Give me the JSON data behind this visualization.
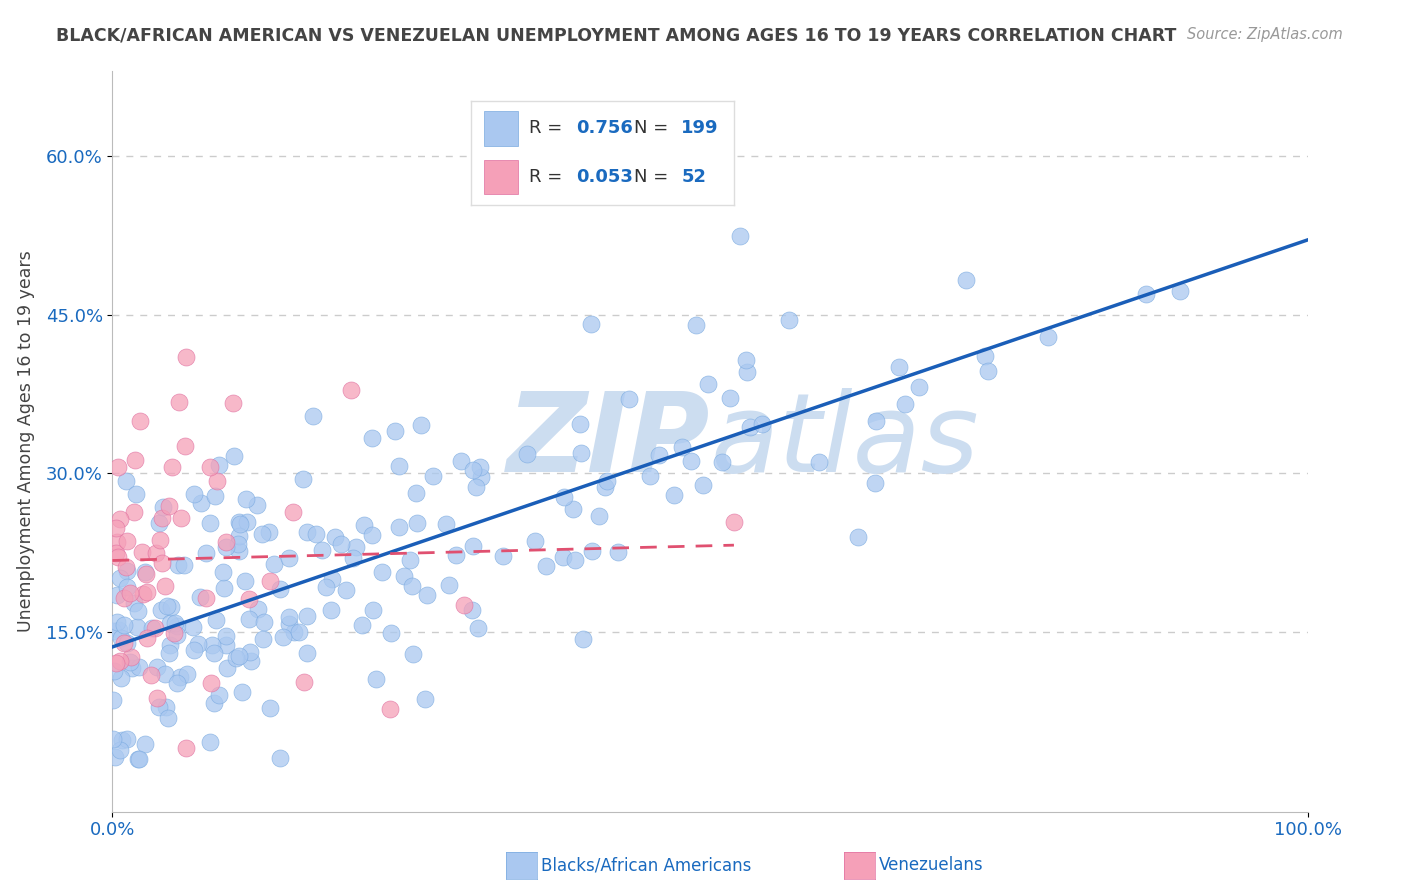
{
  "title": "BLACK/AFRICAN AMERICAN VS VENEZUELAN UNEMPLOYMENT AMONG AGES 16 TO 19 YEARS CORRELATION CHART",
  "source": "Source: ZipAtlas.com",
  "ylabel": "Unemployment Among Ages 16 to 19 years",
  "xlim": [
    0.0,
    1.0
  ],
  "ylim": [
    -0.02,
    0.68
  ],
  "x_tick_labels": [
    "0.0%",
    "100.0%"
  ],
  "y_ticks": [
    0.15,
    0.3,
    0.45,
    0.6
  ],
  "y_tick_labels": [
    "15.0%",
    "30.0%",
    "45.0%",
    "60.0%"
  ],
  "background_color": "#ffffff",
  "grid_color": "#cccccc",
  "blue_scatter_color": "#aac8f0",
  "blue_scatter_edge": "#7aaae0",
  "blue_line_color": "#1a5eb8",
  "pink_scatter_color": "#f5a0b8",
  "pink_scatter_edge": "#e070a0",
  "pink_line_color": "#e05070",
  "text_color": "#1a6abf",
  "title_color": "#444444",
  "watermark_color": "#ccddf0",
  "R_blue": 0.756,
  "N_blue": 199,
  "R_pink": 0.053,
  "N_pink": 52,
  "legend_R_color": "#333333",
  "legend_N_color": "#1a6abf"
}
